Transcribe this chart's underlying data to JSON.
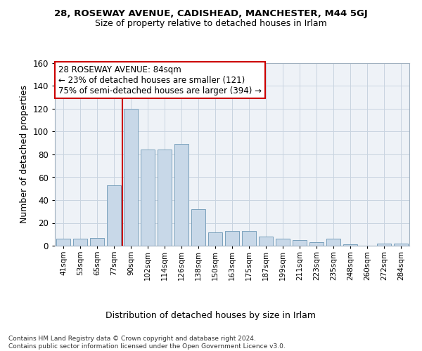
{
  "title1": "28, ROSEWAY AVENUE, CADISHEAD, MANCHESTER, M44 5GJ",
  "title2": "Size of property relative to detached houses in Irlam",
  "xlabel": "Distribution of detached houses by size in Irlam",
  "ylabel": "Number of detached properties",
  "bar_labels": [
    "41sqm",
    "53sqm",
    "65sqm",
    "77sqm",
    "90sqm",
    "102sqm",
    "114sqm",
    "126sqm",
    "138sqm",
    "150sqm",
    "163sqm",
    "175sqm",
    "187sqm",
    "199sqm",
    "211sqm",
    "223sqm",
    "235sqm",
    "248sqm",
    "260sqm",
    "272sqm",
    "284sqm"
  ],
  "bar_values": [
    6,
    6,
    7,
    53,
    120,
    84,
    84,
    89,
    32,
    12,
    13,
    13,
    8,
    6,
    5,
    3,
    6,
    1,
    0,
    2,
    2
  ],
  "bar_color": "#c8d8e8",
  "bar_edge_color": "#7aa0bc",
  "vline_color": "#cc0000",
  "annotation_text": "28 ROSEWAY AVENUE: 84sqm\n← 23% of detached houses are smaller (121)\n75% of semi-detached houses are larger (394) →",
  "annotation_box_color": "#ffffff",
  "annotation_box_edge": "#cc0000",
  "ylim": [
    0,
    160
  ],
  "yticks": [
    0,
    20,
    40,
    60,
    80,
    100,
    120,
    140,
    160
  ],
  "grid_color": "#c8d4e0",
  "bg_color": "#eef2f7",
  "footnote": "Contains HM Land Registry data © Crown copyright and database right 2024.\nContains public sector information licensed under the Open Government Licence v3.0.",
  "title1_fontsize": 9.5,
  "title2_fontsize": 9,
  "xlabel_fontsize": 9,
  "ylabel_fontsize": 9,
  "annotation_fontsize": 8.5,
  "footnote_fontsize": 6.5
}
